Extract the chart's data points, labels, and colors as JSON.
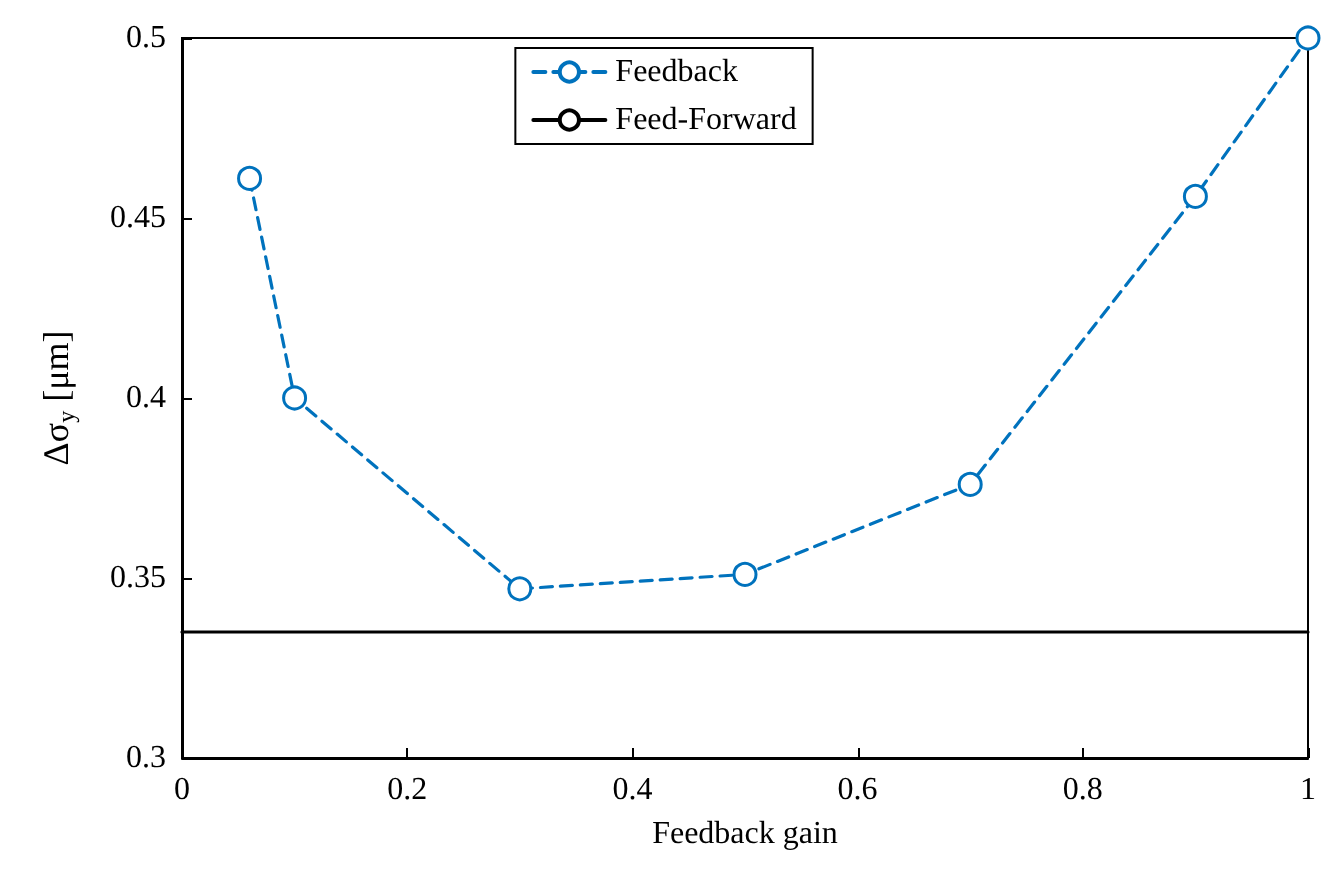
{
  "chart_data": {
    "type": "line",
    "xlabel": "Feedback gain",
    "ylabel": "Δσ$_{y}$ [μm]",
    "xlim": [
      0,
      1
    ],
    "xticks": [
      0,
      0.2,
      0.4,
      0.6,
      0.8,
      1
    ],
    "ylim": [
      0.3,
      0.5
    ],
    "yticks": [
      0.3,
      0.35,
      0.4,
      0.45,
      0.5
    ],
    "grid": false,
    "legend": "top",
    "series": [
      {
        "name": "Feedback",
        "color": "#0072bd",
        "x": [
          0.06,
          0.1,
          0.3,
          0.5,
          0.7,
          0.9,
          1.0
        ],
        "values": [
          0.461,
          0.4,
          0.347,
          0.351,
          0.376,
          0.456,
          0.5
        ],
        "marker": "circle",
        "line_style": "dashed"
      },
      {
        "name": "Feed-Forward",
        "color": "#000000",
        "x": [
          0,
          1
        ],
        "values": [
          0.335,
          0.335
        ],
        "marker": "none",
        "line_style": "solid"
      }
    ]
  }
}
